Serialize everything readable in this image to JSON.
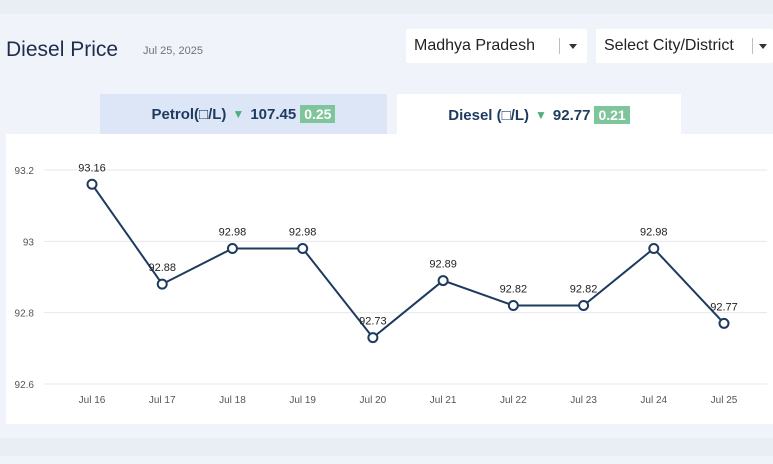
{
  "header": {
    "title": "Diesel Price",
    "date": "Jul 25, 2025"
  },
  "filters": {
    "state": "Madhya Pradesh",
    "city_placeholder": "Select City/District"
  },
  "tabs": [
    {
      "label": "Petrol(□/L)",
      "price": "107.45",
      "change": "0.25",
      "trend": "down",
      "selected": false
    },
    {
      "label": "Diesel (□/L)",
      "price": "92.77",
      "change": "0.21",
      "trend": "down",
      "selected": true
    }
  ],
  "colors": {
    "line": "#1e3a5f",
    "badge": "#7fc59c",
    "down_arrow": "#4caf7d",
    "selected_tab": "#ffffff",
    "unselected_tab": "#dce6f6"
  },
  "chart_data": {
    "type": "line",
    "categories": [
      "Jul 16",
      "Jul 17",
      "Jul 18",
      "Jul 19",
      "Jul 20",
      "Jul 21",
      "Jul 22",
      "Jul 23",
      "Jul 24",
      "Jul 25"
    ],
    "values": [
      93.16,
      92.88,
      92.98,
      92.98,
      92.73,
      92.89,
      92.82,
      92.82,
      92.98,
      92.77
    ],
    "value_labels": [
      "93.16",
      "92.88",
      "92.98",
      "92.98",
      "92.73",
      "92.89",
      "92.82",
      "92.82",
      "92.98",
      "92.77"
    ],
    "yticks": [
      93.2,
      93,
      92.8,
      92.6
    ],
    "ytick_labels": [
      "93.2",
      "93",
      "92.8",
      "92.6"
    ],
    "ylim": [
      92.6,
      93.2
    ],
    "grid": true,
    "legend": "none"
  }
}
